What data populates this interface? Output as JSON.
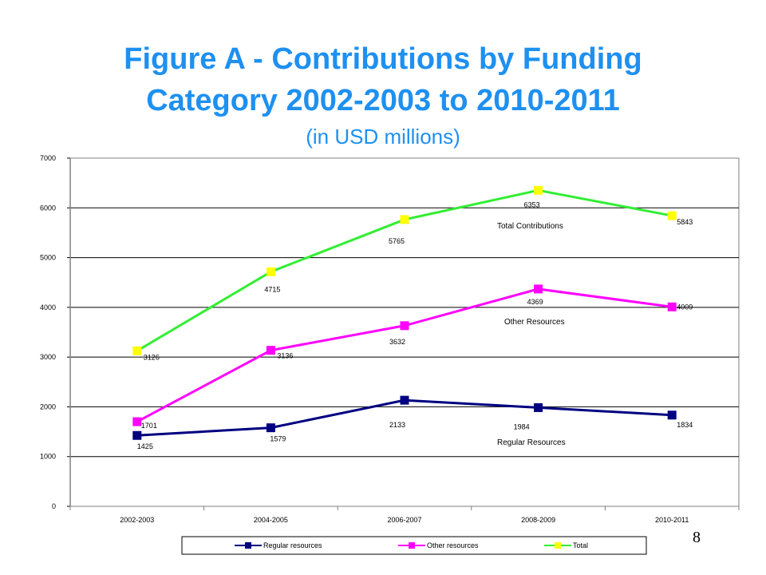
{
  "title_line1": "Figure A - Contributions by Funding",
  "title_line2": "Category 2002-2003 to 2010-2011",
  "subtitle": "(in USD millions)",
  "page_number": "8",
  "colors": {
    "title": "#1e90f0",
    "regular": "#000080",
    "other": "#ff00ff",
    "total_line": "#33ee33",
    "total_marker": "#ffff00"
  },
  "chart_data": {
    "type": "line",
    "categories": [
      "2002-2003",
      "2004-2005",
      "2006-2007",
      "2008-2009",
      "2010-2011"
    ],
    "ylim": [
      0,
      7000
    ],
    "yticks": [
      0,
      1000,
      2000,
      3000,
      4000,
      5000,
      6000,
      7000
    ],
    "grid": true,
    "legend_position": "bottom",
    "series": [
      {
        "name": "Regular resources",
        "key": "regular",
        "values": [
          1425,
          1579,
          2133,
          1984,
          1834
        ]
      },
      {
        "name": "Other resources",
        "key": "other",
        "values": [
          1701,
          3136,
          3632,
          4369,
          4009
        ]
      },
      {
        "name": "Total",
        "key": "total",
        "values": [
          3126,
          4715,
          5765,
          6353,
          5843
        ]
      }
    ],
    "annotations": [
      "Total Contributions",
      "Other Resources",
      "Regular Resources"
    ]
  }
}
